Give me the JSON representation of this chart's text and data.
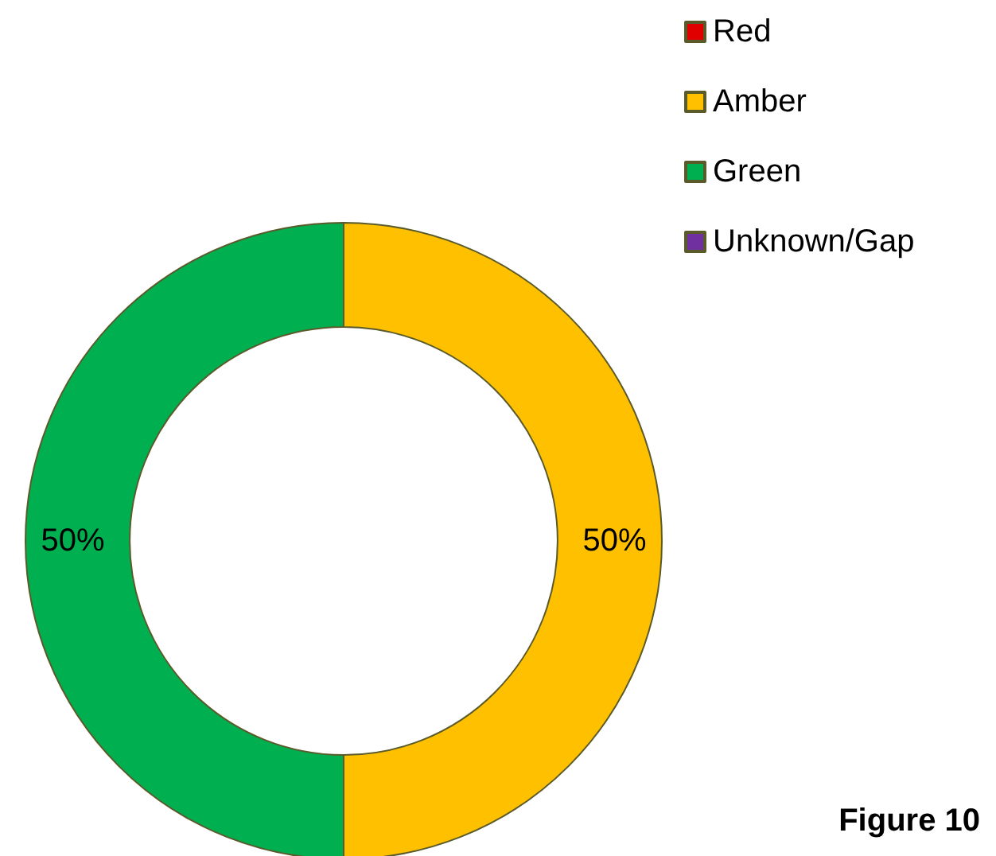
{
  "chart_data": {
    "type": "donut",
    "categories": [
      "Red",
      "Amber",
      "Green",
      "Unknown/Gap"
    ],
    "values": [
      0,
      50,
      50,
      0
    ],
    "colors": [
      "#e00000",
      "#ffc000",
      "#00b050",
      "#7030a0"
    ],
    "value_labels": [
      null,
      "50%",
      "50%",
      null
    ],
    "legend": "top right",
    "annotations": [
      "Figure 10"
    ]
  }
}
